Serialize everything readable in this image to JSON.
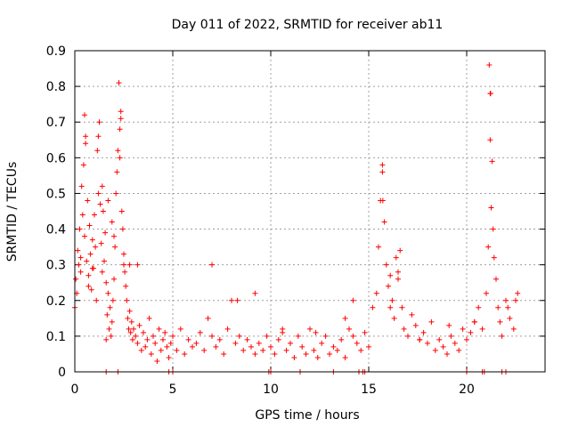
{
  "chart_data": {
    "type": "scatter",
    "title": "Day 011 of 2022, SRMTID for receiver ab11",
    "xlabel": "GPS time / hours",
    "ylabel": "SRMTID / TECUs",
    "xlim": [
      0,
      24
    ],
    "ylim": [
      0,
      0.9
    ],
    "xticks": [
      0,
      5,
      10,
      15,
      20
    ],
    "xtick_labels": [
      "0",
      "5",
      "10",
      "15",
      "20"
    ],
    "yticks": [
      0,
      0.1,
      0.2,
      0.3,
      0.4,
      0.5,
      0.6,
      0.7,
      0.8,
      0.9
    ],
    "ytick_labels": [
      "0",
      "0.1",
      "0.2",
      "0.3",
      "0.4",
      "0.5",
      "0.6",
      "0.7",
      "0.8",
      "0.9"
    ],
    "grid": true,
    "marker": "+",
    "color": "#ff0000",
    "series": [
      {
        "name": "SRMTID",
        "x": [
          0.0,
          0.05,
          0.1,
          0.15,
          0.2,
          0.25,
          0.3,
          0.35,
          0.4,
          0.45,
          0.5,
          0.55,
          0.6,
          0.65,
          0.7,
          0.75,
          0.8,
          0.85,
          0.9,
          0.95,
          1.0,
          1.05,
          1.1,
          1.15,
          1.2,
          1.25,
          1.3,
          1.35,
          1.4,
          1.45,
          1.5,
          1.55,
          1.6,
          1.65,
          1.7,
          1.75,
          1.8,
          1.85,
          1.9,
          1.95,
          2.0,
          2.05,
          2.1,
          2.15,
          2.2,
          2.25,
          2.3,
          2.35,
          2.4,
          2.45,
          2.5,
          2.55,
          2.6,
          2.65,
          2.7,
          2.75,
          2.8,
          2.85,
          2.9,
          2.95,
          3.0,
          3.1,
          3.2,
          3.3,
          3.4,
          3.5,
          3.6,
          3.7,
          3.8,
          3.9,
          4.0,
          4.1,
          4.2,
          4.3,
          4.4,
          4.5,
          4.6,
          4.7,
          4.8,
          4.9,
          5.0,
          5.2,
          5.4,
          5.6,
          5.8,
          6.0,
          6.2,
          6.4,
          6.6,
          6.8,
          7.0,
          7.2,
          7.4,
          7.6,
          7.8,
          8.0,
          8.2,
          8.4,
          8.6,
          8.8,
          9.0,
          9.2,
          9.4,
          9.6,
          9.8,
          10.0,
          10.2,
          10.4,
          10.6,
          10.8,
          11.0,
          11.2,
          11.4,
          11.6,
          11.8,
          12.0,
          12.2,
          12.4,
          12.6,
          12.8,
          13.0,
          13.2,
          13.4,
          13.6,
          13.8,
          14.0,
          14.2,
          14.4,
          14.6,
          14.8,
          15.0,
          15.2,
          15.4,
          15.5,
          15.6,
          15.7,
          15.8,
          15.9,
          16.0,
          16.1,
          16.2,
          16.3,
          16.4,
          16.5,
          16.6,
          16.7,
          16.8,
          17.0,
          17.2,
          17.4,
          17.6,
          17.8,
          18.0,
          18.2,
          18.4,
          18.6,
          18.8,
          19.0,
          19.2,
          19.4,
          19.6,
          19.8,
          20.0,
          20.2,
          20.4,
          20.6,
          20.8,
          21.0,
          21.1,
          21.15,
          21.2,
          21.25,
          21.3,
          21.35,
          21.4,
          21.5,
          21.6,
          21.7,
          21.8,
          22.0,
          22.2,
          22.4,
          22.6,
          1.6,
          2.3,
          2.35,
          21.2,
          21.22,
          0.5,
          0.55,
          1.2,
          15.7,
          15.72,
          1.4,
          1.7,
          1.9,
          2.0,
          2.5,
          2.8,
          3.2,
          0.3,
          0.7,
          0.9,
          14.2,
          16.1,
          16.5,
          7.0,
          8.3,
          9.2,
          10.6,
          12.3,
          13.8,
          17.6,
          19.1,
          20.4,
          22.1,
          22.5,
          1.6,
          2.2,
          4.8,
          5.0,
          9.9,
          10.0,
          11.5,
          13.2,
          14.5,
          14.7,
          14.8,
          20.0,
          20.8,
          20.9,
          21.8,
          22.0
        ],
        "y": [
          0.18,
          0.26,
          0.22,
          0.34,
          0.3,
          0.4,
          0.28,
          0.52,
          0.44,
          0.58,
          0.38,
          0.66,
          0.31,
          0.48,
          0.27,
          0.41,
          0.33,
          0.23,
          0.37,
          0.29,
          0.44,
          0.35,
          0.2,
          0.62,
          0.5,
          0.7,
          0.47,
          0.36,
          0.28,
          0.45,
          0.31,
          0.39,
          0.25,
          0.16,
          0.22,
          0.12,
          0.18,
          0.1,
          0.14,
          0.2,
          0.26,
          0.35,
          0.5,
          0.56,
          0.62,
          0.81,
          0.6,
          0.73,
          0.45,
          0.4,
          0.33,
          0.28,
          0.24,
          0.2,
          0.15,
          0.12,
          0.17,
          0.11,
          0.14,
          0.09,
          0.12,
          0.1,
          0.08,
          0.13,
          0.06,
          0.11,
          0.07,
          0.09,
          0.15,
          0.05,
          0.1,
          0.08,
          0.03,
          0.12,
          0.06,
          0.09,
          0.11,
          0.07,
          0.04,
          0.08,
          0.1,
          0.06,
          0.12,
          0.05,
          0.09,
          0.07,
          0.08,
          0.11,
          0.06,
          0.15,
          0.1,
          0.07,
          0.09,
          0.05,
          0.12,
          0.2,
          0.08,
          0.1,
          0.06,
          0.09,
          0.07,
          0.05,
          0.08,
          0.06,
          0.1,
          0.07,
          0.05,
          0.09,
          0.11,
          0.06,
          0.08,
          0.04,
          0.1,
          0.07,
          0.05,
          0.12,
          0.06,
          0.04,
          0.08,
          0.1,
          0.05,
          0.07,
          0.06,
          0.09,
          0.04,
          0.12,
          0.1,
          0.08,
          0.06,
          0.11,
          0.07,
          0.18,
          0.22,
          0.35,
          0.48,
          0.56,
          0.42,
          0.3,
          0.24,
          0.27,
          0.2,
          0.15,
          0.32,
          0.28,
          0.34,
          0.18,
          0.12,
          0.1,
          0.16,
          0.13,
          0.09,
          0.11,
          0.08,
          0.14,
          0.06,
          0.09,
          0.07,
          0.05,
          0.1,
          0.08,
          0.06,
          0.12,
          0.09,
          0.11,
          0.14,
          0.18,
          0.12,
          0.22,
          0.35,
          0.86,
          0.78,
          0.46,
          0.59,
          0.4,
          0.32,
          0.26,
          0.18,
          0.14,
          0.1,
          0.2,
          0.15,
          0.12,
          0.22,
          0.09,
          0.68,
          0.71,
          0.65,
          0.78,
          0.72,
          0.64,
          0.66,
          0.58,
          0.48,
          0.52,
          0.48,
          0.42,
          0.38,
          0.3,
          0.3,
          0.3,
          0.32,
          0.24,
          0.29,
          0.2,
          0.18,
          0.26,
          0.3,
          0.2,
          0.22,
          0.12,
          0.11,
          0.15,
          0.09,
          0.13,
          0.14,
          0.18,
          0.2,
          0.0,
          0.0,
          0.0,
          0.0,
          0.0,
          0.0,
          0.0,
          0.0,
          0.0,
          0.0,
          0.0,
          0.0,
          0.0,
          0.0,
          0.0,
          0.0
        ]
      }
    ]
  }
}
